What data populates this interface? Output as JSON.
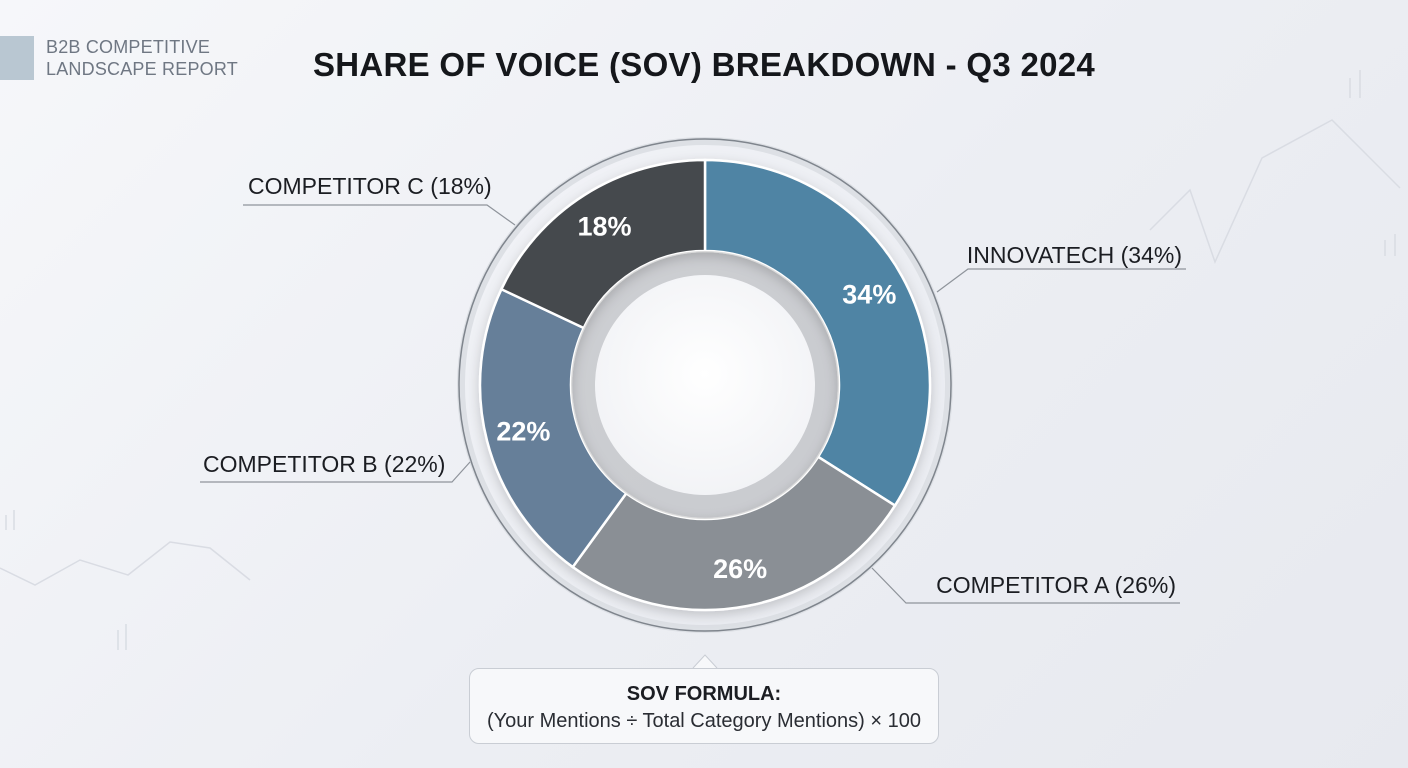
{
  "brand": {
    "line1": "B2B COMPETITIVE",
    "line2": "LANDSCAPE REPORT"
  },
  "chart_data": {
    "type": "pie",
    "variant": "donut",
    "title": "SHARE OF VOICE (SOV) BREAKDOWN - Q3 2024",
    "unit": "%",
    "slices": [
      {
        "name": "INNOVATECH",
        "value": 34,
        "data_label": "34%",
        "callout": "INNOVATECH (34%)",
        "color": "#4f84a4"
      },
      {
        "name": "COMPETITOR A",
        "value": 26,
        "data_label": "26%",
        "callout": "COMPETITOR A (26%)",
        "color": "#8a8f95"
      },
      {
        "name": "COMPETITOR B",
        "value": 22,
        "data_label": "22%",
        "callout": "COMPETITOR B (22%)",
        "color": "#667f99"
      },
      {
        "name": "COMPETITOR C",
        "value": 18,
        "data_label": "18%",
        "callout": "COMPETITOR C (18%)",
        "color": "#45484e"
      }
    ]
  },
  "formula": {
    "title": "SOV FORMULA:",
    "text": "(Your Mentions ÷ Total Category Mentions) × 100"
  }
}
